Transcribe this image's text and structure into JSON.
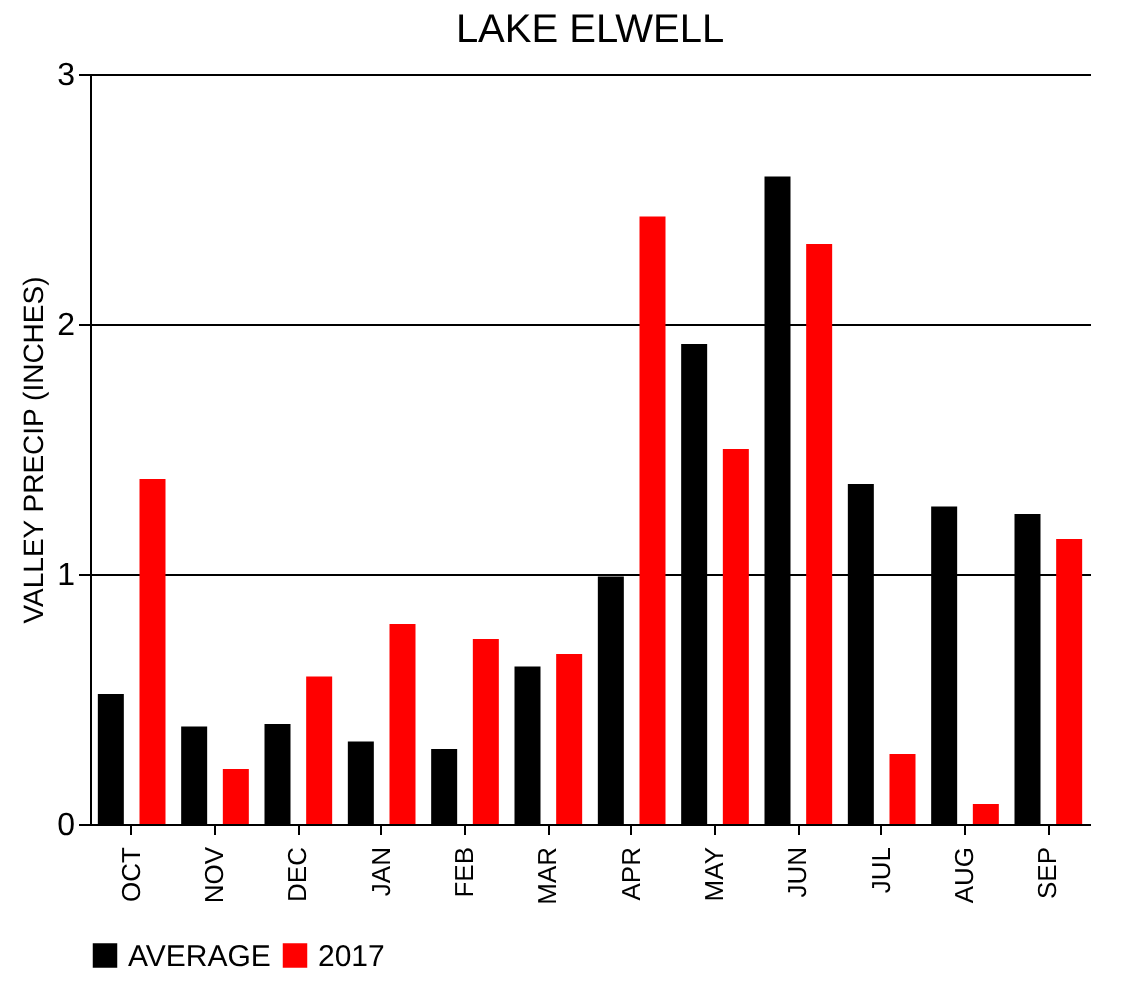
{
  "chart_data": {
    "type": "bar",
    "title": "LAKE ELWELL",
    "ylabel": "VALLEY PRECIP (INCHES)",
    "categories": [
      "OCT",
      "NOV",
      "DEC",
      "JAN",
      "FEB",
      "MAR",
      "APR",
      "MAY",
      "JUN",
      "JUL",
      "AUG",
      "SEP"
    ],
    "series": [
      {
        "name": "AVERAGE",
        "color": "#000000",
        "values": [
          0.52,
          0.39,
          0.4,
          0.33,
          0.3,
          0.63,
          0.99,
          1.92,
          2.59,
          1.36,
          1.27,
          1.24
        ]
      },
      {
        "name": "2017",
        "color": "#ff0000",
        "values": [
          1.38,
          0.22,
          0.59,
          0.8,
          0.74,
          0.68,
          2.43,
          1.5,
          2.32,
          0.28,
          0.08,
          1.14
        ]
      }
    ],
    "ylim": [
      0,
      3
    ],
    "yticks": [
      0,
      1,
      2,
      3
    ],
    "grid": "y",
    "legend": "bottom"
  }
}
